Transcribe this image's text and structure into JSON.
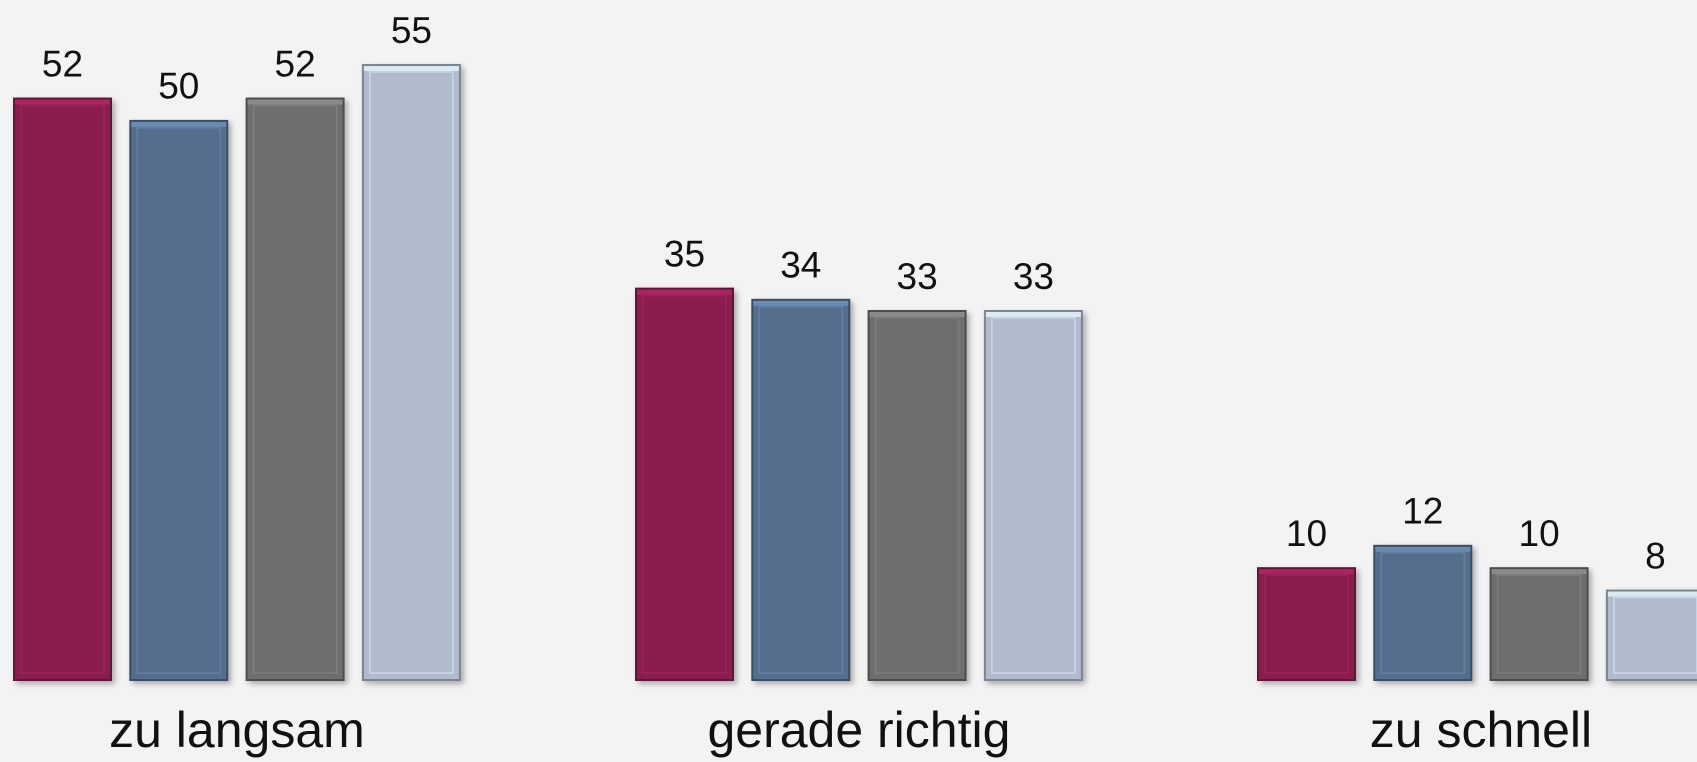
{
  "chart_data": {
    "type": "bar",
    "categories": [
      "zu langsam",
      "gerade richtig",
      "zu schnell"
    ],
    "series": [
      {
        "color": "#8a1f4f",
        "values": [
          52,
          35,
          10
        ]
      },
      {
        "color": "#556e8e",
        "values": [
          50,
          34,
          12
        ]
      },
      {
        "color": "#6e6e6e",
        "values": [
          52,
          33,
          10
        ]
      },
      {
        "color": "#b0bccc",
        "values": [
          55,
          33,
          8
        ]
      }
    ]
  }
}
